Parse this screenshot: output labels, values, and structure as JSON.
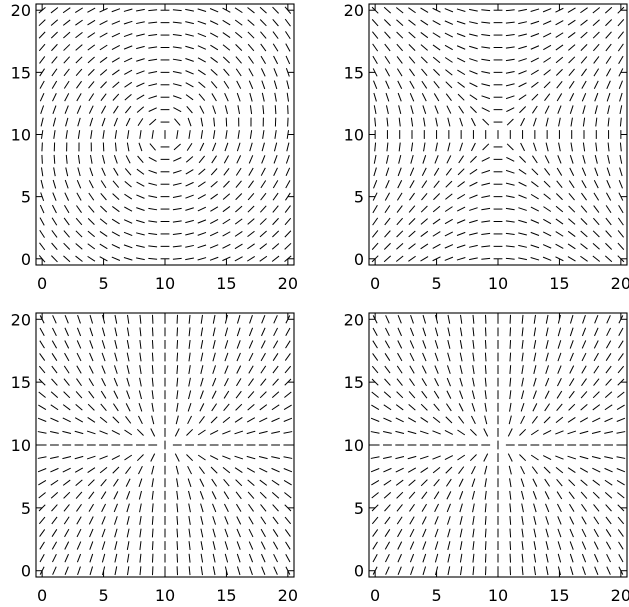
{
  "chart_data": [
    {
      "type": "vector-field",
      "field": "circulation",
      "xlim": [
        -0.5,
        20.5
      ],
      "ylim": [
        -0.5,
        20.5
      ],
      "grid": {
        "x": [
          0,
          20,
          1
        ],
        "y": [
          0,
          20,
          1
        ]
      },
      "xticks": [
        "0",
        "5",
        "10",
        "15",
        "20"
      ],
      "yticks": [
        "0",
        "5",
        "10",
        "15",
        "20"
      ],
      "grid_lines": false
    },
    {
      "type": "vector-field",
      "field": "saddle",
      "xlim": [
        -0.5,
        20.5
      ],
      "ylim": [
        -0.5,
        20.5
      ],
      "grid": {
        "x": [
          0,
          20,
          1
        ],
        "y": [
          0,
          20,
          1
        ]
      },
      "xticks": [
        "0",
        "5",
        "10",
        "15",
        "20"
      ],
      "yticks": [
        "0",
        "5",
        "10",
        "15",
        "20"
      ],
      "grid_lines": false
    },
    {
      "type": "vector-field",
      "field": "radial",
      "xlim": [
        -0.5,
        20.5
      ],
      "ylim": [
        -0.5,
        20.5
      ],
      "grid": {
        "x": [
          0,
          20,
          1
        ],
        "y": [
          0,
          20,
          1
        ]
      },
      "xticks": [
        "0",
        "5",
        "10",
        "15",
        "20"
      ],
      "yticks": [
        "0",
        "5",
        "10",
        "15",
        "20"
      ],
      "grid_lines": false
    },
    {
      "type": "vector-field",
      "field": "radial",
      "xlim": [
        -0.5,
        20.5
      ],
      "ylim": [
        -0.5,
        20.5
      ],
      "grid": {
        "x": [
          0,
          20,
          1
        ],
        "y": [
          0,
          20,
          1
        ]
      },
      "xticks": [
        "0",
        "5",
        "10",
        "15",
        "20"
      ],
      "yticks": [
        "0",
        "5",
        "10",
        "15",
        "20"
      ],
      "grid_lines": false
    }
  ]
}
